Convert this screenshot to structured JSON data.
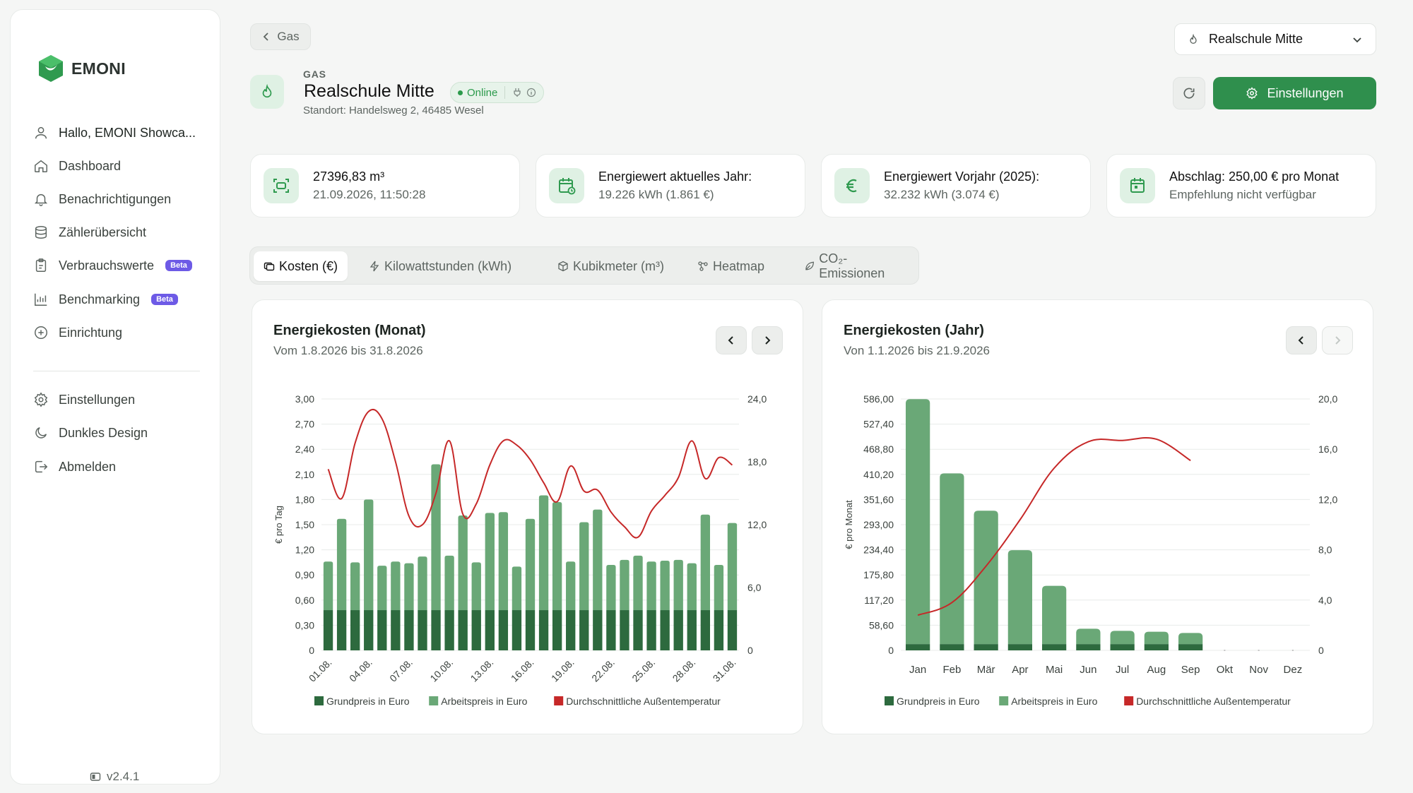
{
  "sidebar": {
    "brand": "EMONI",
    "greeting": "Hallo, EMONI Showca...",
    "items": [
      {
        "label": "Dashboard",
        "icon": "home-icon"
      },
      {
        "label": "Benachrichtigungen",
        "icon": "bell-icon"
      },
      {
        "label": "Zählerübersicht",
        "icon": "database-icon"
      },
      {
        "label": "Verbrauchswerte",
        "icon": "clipboard-icon",
        "badge": "Beta"
      },
      {
        "label": "Benchmarking",
        "icon": "bar-chart-icon",
        "badge": "Beta"
      },
      {
        "label": "Einrichtung",
        "icon": "plus-square-icon"
      }
    ],
    "bottom_items": [
      {
        "label": "Einstellungen",
        "icon": "gear-icon"
      },
      {
        "label": "Dunkles Design",
        "icon": "moon-icon"
      },
      {
        "label": "Abmelden",
        "icon": "logout-icon"
      }
    ],
    "version": "v2.4.1"
  },
  "header": {
    "back_label": "Gas",
    "type_label": "GAS",
    "site_name": "Realschule Mitte",
    "status": "Online",
    "address": "Standort: Handelsweg 2, 46485 Wesel",
    "site_select": "Realschule Mitte",
    "settings_label": "Einstellungen"
  },
  "kpis": [
    {
      "line1": "27396,83 m³",
      "line2": "21.09.2026, 11:50:28",
      "icon": "meter-icon"
    },
    {
      "line1": "Energiewert aktuelles Jahr:",
      "line2": "19.226 kWh (1.861 €)",
      "icon": "calendar-clock-icon"
    },
    {
      "line1": "Energiewert Vorjahr (2025):",
      "line2": "32.232 kWh (3.074 €)",
      "icon": "euro-icon"
    },
    {
      "line1": "Abschlag: 250,00 € pro Monat",
      "line2": "Empfehlung nicht verfügbar",
      "icon": "calendar-icon"
    }
  ],
  "tabs": [
    {
      "label": "Kosten (€)",
      "active": true
    },
    {
      "label": "Kilowattstunden (kWh)",
      "active": false
    },
    {
      "label": "Kubikmeter (m³)",
      "active": false
    },
    {
      "label": "Heatmap",
      "active": false
    },
    {
      "label": "CO₂-Emissionen",
      "active": false
    }
  ],
  "colors": {
    "accent": "#2f8f4d",
    "grundpreis": "#2d6a3e",
    "arbeitspreis": "#6aa877",
    "temperature": "#c62828"
  },
  "chart_data": [
    {
      "type": "bar",
      "title": "Energiekosten (Monat)",
      "subtitle": "Vom 1.8.2026 bis 31.8.2026",
      "ylabel": "€ pro Tag",
      "ylim": [
        0,
        3.0
      ],
      "y_ticks": [
        "0",
        "0,30",
        "0,60",
        "0,90",
        "1,20",
        "1,50",
        "1,80",
        "2,10",
        "2,40",
        "2,70",
        "3,00"
      ],
      "y2lim": [
        0,
        24.0
      ],
      "y2_ticks": [
        "0",
        "6,0",
        "12,0",
        "18,0",
        "24,0"
      ],
      "x_tick_labels": [
        "01.08.",
        "04.08.",
        "07.08.",
        "10.08.",
        "13.08.",
        "16.08.",
        "19.08.",
        "22.08.",
        "25.08.",
        "28.08.",
        "31.08."
      ],
      "categories": [
        "01.08.",
        "02.08.",
        "03.08.",
        "04.08.",
        "05.08.",
        "06.08.",
        "07.08.",
        "08.08.",
        "09.08.",
        "10.08.",
        "11.08.",
        "12.08.",
        "13.08.",
        "14.08.",
        "15.08.",
        "16.08.",
        "17.08.",
        "18.08.",
        "19.08.",
        "20.08.",
        "21.08.",
        "22.08.",
        "23.08.",
        "24.08.",
        "25.08.",
        "26.08.",
        "27.08.",
        "28.08.",
        "29.08.",
        "30.08.",
        "31.08."
      ],
      "series": [
        {
          "name": "Grundpreis in Euro",
          "values": [
            0.48,
            0.48,
            0.48,
            0.48,
            0.48,
            0.48,
            0.48,
            0.48,
            0.48,
            0.48,
            0.48,
            0.48,
            0.48,
            0.48,
            0.48,
            0.48,
            0.48,
            0.48,
            0.48,
            0.48,
            0.48,
            0.48,
            0.48,
            0.48,
            0.48,
            0.48,
            0.48,
            0.48,
            0.48,
            0.48,
            0.48
          ]
        },
        {
          "name": "Arbeitspreis in Euro",
          "values": [
            0.58,
            1.09,
            0.57,
            1.32,
            0.53,
            0.58,
            0.56,
            0.64,
            1.74,
            0.65,
            1.13,
            0.57,
            1.16,
            1.17,
            0.52,
            1.09,
            1.37,
            1.29,
            0.58,
            1.05,
            1.2,
            0.54,
            0.6,
            0.65,
            0.58,
            0.59,
            0.6,
            0.56,
            1.14,
            0.54,
            1.04
          ]
        },
        {
          "name": "Durchschnittliche Außentemperatur",
          "axis": "right",
          "values": [
            17.3,
            14.5,
            19.8,
            22.8,
            22.1,
            18.0,
            12.8,
            12.0,
            15.0,
            20.0,
            13.0,
            14.0,
            17.7,
            20.0,
            19.6,
            18.2,
            16.0,
            14.2,
            17.6,
            15.2,
            15.3,
            13.2,
            11.8,
            10.8,
            13.3,
            14.8,
            16.5,
            20.0,
            16.4,
            18.4,
            17.7
          ]
        }
      ],
      "legend": "bottom"
    },
    {
      "type": "bar",
      "title": "Energiekosten (Jahr)",
      "subtitle": "Von 1.1.2026 bis 21.9.2026",
      "ylabel": "€ pro Monat",
      "ylim": [
        0,
        586.0
      ],
      "y_ticks": [
        "0",
        "58,60",
        "117,20",
        "175,80",
        "234,40",
        "293,00",
        "351,60",
        "410,20",
        "468,80",
        "527,40",
        "586,00"
      ],
      "y2lim": [
        0,
        20.0
      ],
      "y2_ticks": [
        "0",
        "4,0",
        "8,0",
        "12,0",
        "16,0",
        "20,0"
      ],
      "categories": [
        "Jan",
        "Feb",
        "Mär",
        "Apr",
        "Mai",
        "Jun",
        "Jul",
        "Aug",
        "Sep",
        "Okt",
        "Nov",
        "Dez"
      ],
      "series": [
        {
          "name": "Grundpreis in Euro",
          "values": [
            14.5,
            14.5,
            14.5,
            14.5,
            14.5,
            14.5,
            14.5,
            14.5,
            14.5,
            0,
            0,
            0
          ]
        },
        {
          "name": "Arbeitspreis in Euro",
          "values": [
            571,
            398,
            311,
            219,
            136,
            36,
            31,
            29,
            26,
            0,
            0,
            0
          ]
        },
        {
          "name": "Durchschnittliche Außentemperatur",
          "axis": "right",
          "values": [
            2.8,
            3.8,
            6.7,
            10.4,
            14.5,
            16.6,
            16.7,
            16.8,
            15.1,
            null,
            null,
            null
          ]
        }
      ],
      "legend": "bottom"
    }
  ]
}
